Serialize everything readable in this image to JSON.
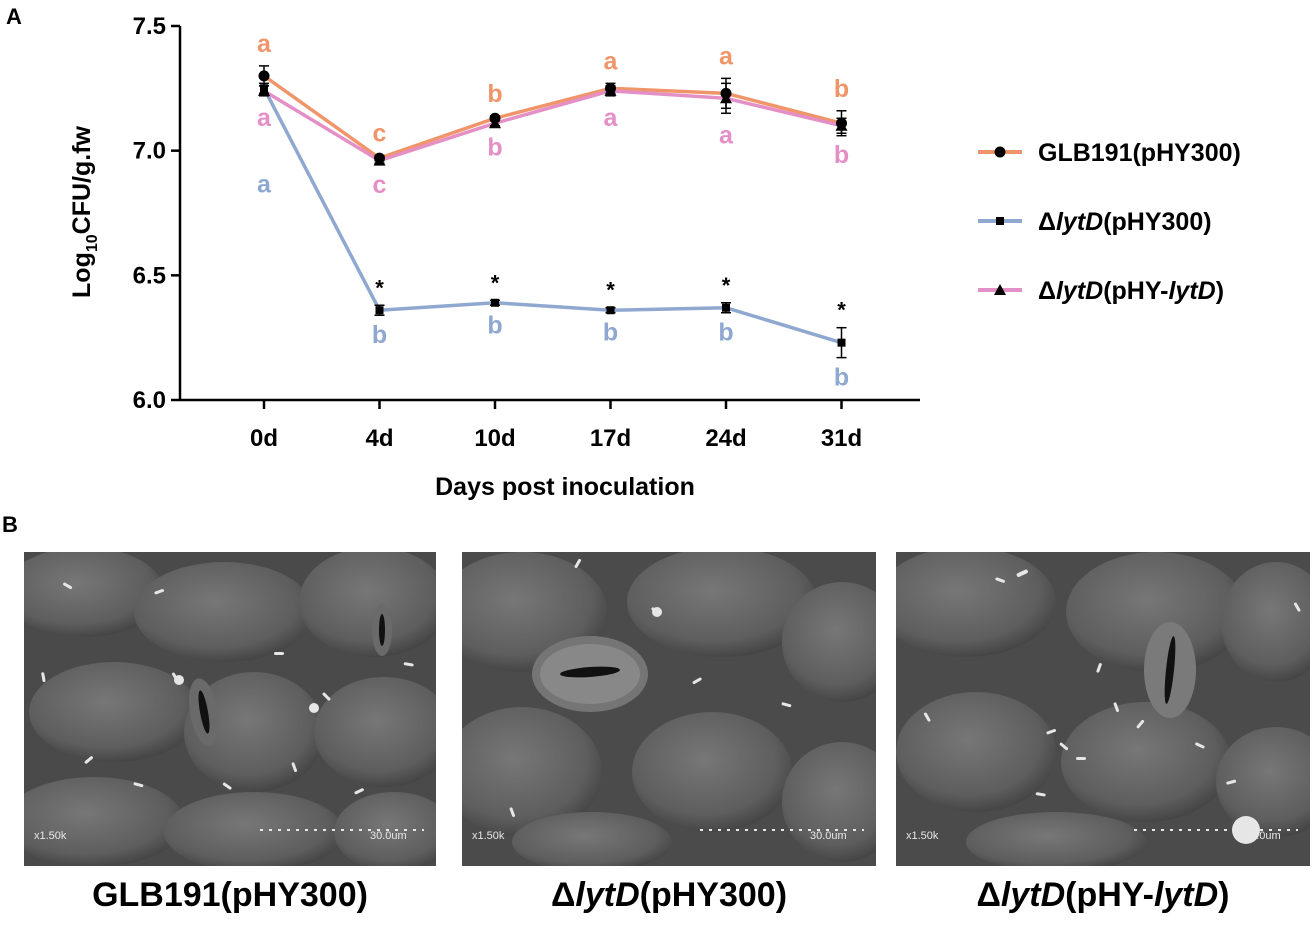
{
  "panel_labels": {
    "a": "A",
    "b": "B"
  },
  "chart_data": {
    "type": "line",
    "x": [
      "0d",
      "4d",
      "10d",
      "17d",
      "24d",
      "31d"
    ],
    "xlabel": "Days post inoculation",
    "ylabel_main": "Log",
    "ylabel_sub": "10",
    "ylabel_rest": "CFU/g.fw",
    "ylim": [
      6.0,
      7.5
    ],
    "yticks": [
      "6.0",
      "6.5",
      "7.0",
      "7.5"
    ],
    "legend_position": "right",
    "series": [
      {
        "name_prefix": "",
        "name_italic": "",
        "name_mid": "GLB191(pHY300)",
        "name_italic2": "",
        "name_suffix": "",
        "color": "#f0956a",
        "marker": "circle",
        "values": [
          7.3,
          6.97,
          7.13,
          7.25,
          7.23,
          7.11
        ],
        "errors": [
          0.04,
          0.01,
          0.01,
          0.02,
          0.06,
          0.05
        ],
        "letters": [
          "a",
          "c",
          "b",
          "a",
          "a",
          "b"
        ],
        "letter_position": "above"
      },
      {
        "name_prefix": "Δ",
        "name_italic": "lytD",
        "name_mid": "(pHY300)",
        "name_italic2": "",
        "name_suffix": "",
        "color": "#8fa8d0",
        "marker": "square",
        "values": [
          7.25,
          6.36,
          6.39,
          6.36,
          6.37,
          6.23
        ],
        "errors": [
          0.02,
          0.02,
          0.01,
          0.01,
          0.02,
          0.06
        ],
        "letters": [
          "a",
          "b",
          "b",
          "b",
          "b",
          "b"
        ],
        "letter_position": "below",
        "significance": [
          "",
          "*",
          "*",
          "*",
          "*",
          "*"
        ]
      },
      {
        "name_prefix": "Δ",
        "name_italic": "lytD",
        "name_mid": "(pHY-",
        "name_italic2": "lytD",
        "name_suffix": ")",
        "color": "#e48fc6",
        "marker": "triangle",
        "values": [
          7.24,
          6.96,
          7.11,
          7.24,
          7.21,
          7.1
        ],
        "errors": [
          0.02,
          0.01,
          0.01,
          0.02,
          0.06,
          0.03
        ],
        "letters": [
          "a",
          "c",
          "b",
          "a",
          "a",
          "b"
        ],
        "letter_position": "below"
      }
    ]
  },
  "micrographs": [
    {
      "caption_prefix": "",
      "caption_italic": "",
      "caption_mid": "GLB191(pHY300)",
      "caption_italic2": "",
      "caption_suffix": "",
      "magnification": "x1.50k",
      "scale_bar": "30.0um"
    },
    {
      "caption_prefix": "Δ",
      "caption_italic": "lytD",
      "caption_mid": "(pHY300)",
      "caption_italic2": "",
      "caption_suffix": "",
      "magnification": "x1.50k",
      "scale_bar": "30.0um"
    },
    {
      "caption_prefix": "Δ",
      "caption_italic": "lytD",
      "caption_mid": "(pHY-",
      "caption_italic2": "lytD",
      "caption_suffix": ")",
      "magnification": "x1.50k",
      "scale_bar": "30.0um"
    }
  ]
}
